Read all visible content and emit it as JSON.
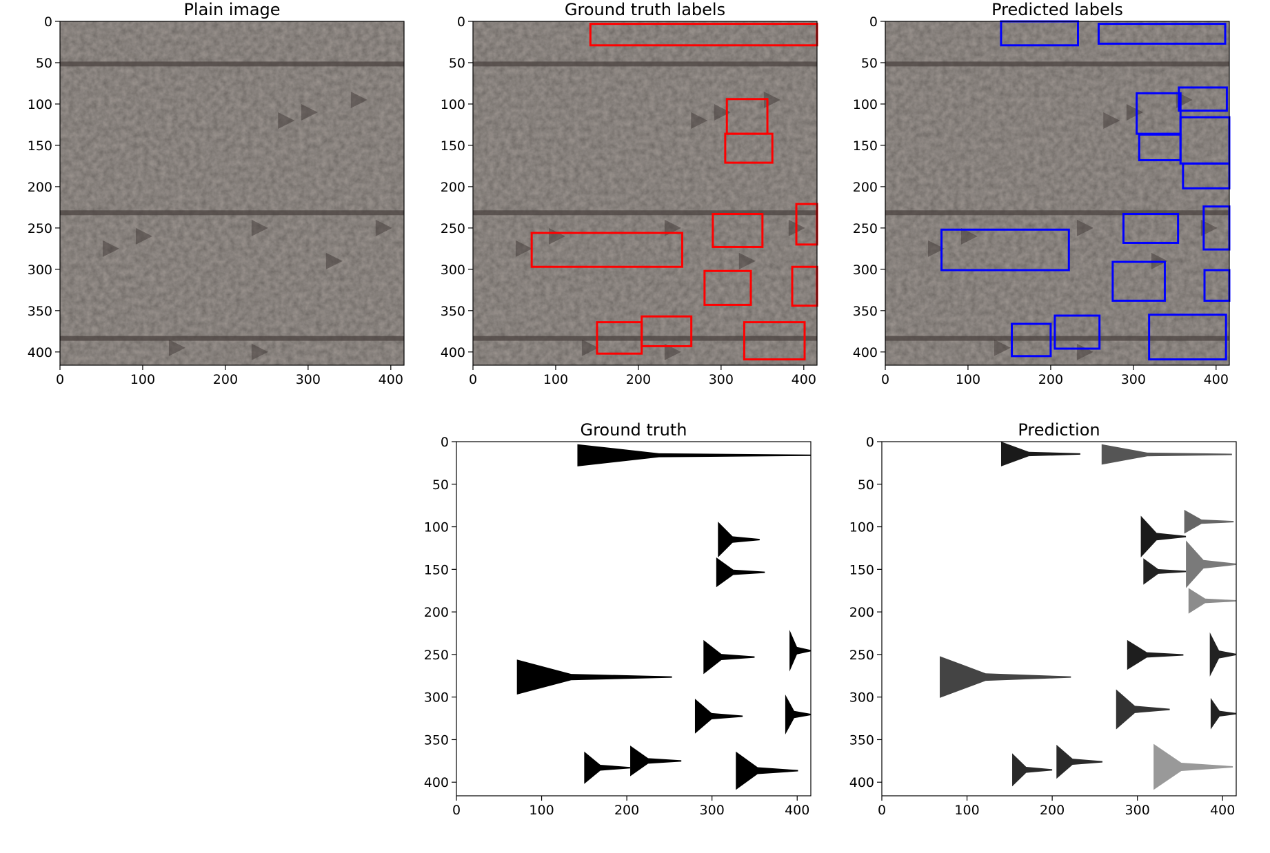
{
  "chart_data": [
    {
      "type": "image",
      "title": "Plain image",
      "xlim": [
        0,
        416
      ],
      "ylim": [
        416,
        0
      ],
      "xticks": [
        0,
        100,
        200,
        300,
        400
      ],
      "yticks": [
        0,
        50,
        100,
        150,
        200,
        250,
        300,
        350,
        400
      ],
      "texture": "stone tablet with cuneiform wedges",
      "boxes": []
    },
    {
      "type": "image",
      "title": "Ground truth labels",
      "xlim": [
        0,
        416
      ],
      "ylim": [
        416,
        0
      ],
      "xticks": [
        0,
        100,
        200,
        300,
        400
      ],
      "yticks": [
        0,
        50,
        100,
        150,
        200,
        250,
        300,
        350,
        400
      ],
      "box_color": "#ff0000",
      "boxes": [
        {
          "x0": 142,
          "y0": 3,
          "x1": 416,
          "y1": 29
        },
        {
          "x0": 307,
          "y0": 94,
          "x1": 356,
          "y1": 136
        },
        {
          "x0": 305,
          "y0": 136,
          "x1": 362,
          "y1": 171
        },
        {
          "x0": 290,
          "y0": 233,
          "x1": 350,
          "y1": 273
        },
        {
          "x0": 391,
          "y0": 221,
          "x1": 416,
          "y1": 270
        },
        {
          "x0": 71,
          "y0": 256,
          "x1": 253,
          "y1": 297
        },
        {
          "x0": 280,
          "y0": 302,
          "x1": 336,
          "y1": 343
        },
        {
          "x0": 386,
          "y0": 297,
          "x1": 416,
          "y1": 344
        },
        {
          "x0": 150,
          "y0": 364,
          "x1": 204,
          "y1": 402
        },
        {
          "x0": 204,
          "y0": 357,
          "x1": 264,
          "y1": 393
        },
        {
          "x0": 328,
          "y0": 364,
          "x1": 401,
          "y1": 409
        }
      ]
    },
    {
      "type": "image",
      "title": "Predicted labels",
      "xlim": [
        0,
        416
      ],
      "ylim": [
        416,
        0
      ],
      "xticks": [
        0,
        100,
        200,
        300,
        400
      ],
      "yticks": [
        0,
        50,
        100,
        150,
        200,
        250,
        300,
        350,
        400
      ],
      "box_color": "#0000ff",
      "boxes": [
        {
          "x0": 140,
          "y0": 0,
          "x1": 233,
          "y1": 29
        },
        {
          "x0": 258,
          "y0": 3,
          "x1": 411,
          "y1": 27
        },
        {
          "x0": 355,
          "y0": 80,
          "x1": 413,
          "y1": 108
        },
        {
          "x0": 304,
          "y0": 87,
          "x1": 357,
          "y1": 136
        },
        {
          "x0": 357,
          "y0": 116,
          "x1": 416,
          "y1": 172
        },
        {
          "x0": 307,
          "y0": 137,
          "x1": 357,
          "y1": 168
        },
        {
          "x0": 360,
          "y0": 172,
          "x1": 416,
          "y1": 202
        },
        {
          "x0": 385,
          "y0": 224,
          "x1": 416,
          "y1": 276
        },
        {
          "x0": 288,
          "y0": 233,
          "x1": 354,
          "y1": 268
        },
        {
          "x0": 68,
          "y0": 252,
          "x1": 222,
          "y1": 301
        },
        {
          "x0": 275,
          "y0": 291,
          "x1": 338,
          "y1": 338
        },
        {
          "x0": 386,
          "y0": 301,
          "x1": 416,
          "y1": 338
        },
        {
          "x0": 153,
          "y0": 366,
          "x1": 200,
          "y1": 405
        },
        {
          "x0": 205,
          "y0": 356,
          "x1": 259,
          "y1": 396
        },
        {
          "x0": 319,
          "y0": 355,
          "x1": 412,
          "y1": 409
        }
      ]
    },
    {
      "type": "wedge-map",
      "title": "Ground truth",
      "xlim": [
        0,
        416
      ],
      "ylim": [
        416,
        0
      ],
      "xticks": [
        0,
        100,
        200,
        300,
        400
      ],
      "yticks": [
        0,
        50,
        100,
        150,
        200,
        250,
        300,
        350,
        400
      ],
      "wedges": [
        {
          "x0": 142,
          "y0": 3,
          "x1": 416,
          "y1": 29,
          "shade": "#000000"
        },
        {
          "x0": 307,
          "y0": 94,
          "x1": 356,
          "y1": 136,
          "shade": "#000000"
        },
        {
          "x0": 305,
          "y0": 136,
          "x1": 362,
          "y1": 171,
          "shade": "#000000"
        },
        {
          "x0": 290,
          "y0": 233,
          "x1": 350,
          "y1": 273,
          "shade": "#000000"
        },
        {
          "x0": 391,
          "y0": 221,
          "x1": 416,
          "y1": 270,
          "shade": "#000000"
        },
        {
          "x0": 71,
          "y0": 256,
          "x1": 253,
          "y1": 297,
          "shade": "#000000"
        },
        {
          "x0": 280,
          "y0": 302,
          "x1": 336,
          "y1": 343,
          "shade": "#000000"
        },
        {
          "x0": 386,
          "y0": 297,
          "x1": 416,
          "y1": 344,
          "shade": "#000000"
        },
        {
          "x0": 150,
          "y0": 364,
          "x1": 204,
          "y1": 402,
          "shade": "#000000"
        },
        {
          "x0": 204,
          "y0": 357,
          "x1": 264,
          "y1": 393,
          "shade": "#000000"
        },
        {
          "x0": 328,
          "y0": 364,
          "x1": 401,
          "y1": 409,
          "shade": "#000000"
        }
      ]
    },
    {
      "type": "wedge-map",
      "title": "Prediction",
      "xlim": [
        0,
        416
      ],
      "ylim": [
        416,
        0
      ],
      "xticks": [
        0,
        100,
        200,
        300,
        400
      ],
      "yticks": [
        0,
        50,
        100,
        150,
        200,
        250,
        300,
        350,
        400
      ],
      "wedges": [
        {
          "x0": 140,
          "y0": 0,
          "x1": 233,
          "y1": 29,
          "shade": "#1a1a1a"
        },
        {
          "x0": 258,
          "y0": 3,
          "x1": 411,
          "y1": 27,
          "shade": "#555555"
        },
        {
          "x0": 355,
          "y0": 80,
          "x1": 413,
          "y1": 108,
          "shade": "#666666"
        },
        {
          "x0": 304,
          "y0": 87,
          "x1": 357,
          "y1": 136,
          "shade": "#1a1a1a"
        },
        {
          "x0": 357,
          "y0": 116,
          "x1": 416,
          "y1": 172,
          "shade": "#7a7a7a"
        },
        {
          "x0": 307,
          "y0": 137,
          "x1": 357,
          "y1": 168,
          "shade": "#222222"
        },
        {
          "x0": 360,
          "y0": 172,
          "x1": 416,
          "y1": 202,
          "shade": "#8c8c8c"
        },
        {
          "x0": 385,
          "y0": 224,
          "x1": 416,
          "y1": 276,
          "shade": "#222222"
        },
        {
          "x0": 288,
          "y0": 233,
          "x1": 354,
          "y1": 268,
          "shade": "#1e1e1e"
        },
        {
          "x0": 68,
          "y0": 252,
          "x1": 222,
          "y1": 301,
          "shade": "#444444"
        },
        {
          "x0": 275,
          "y0": 291,
          "x1": 338,
          "y1": 338,
          "shade": "#333333"
        },
        {
          "x0": 386,
          "y0": 301,
          "x1": 416,
          "y1": 338,
          "shade": "#222222"
        },
        {
          "x0": 153,
          "y0": 366,
          "x1": 200,
          "y1": 405,
          "shade": "#2a2a2a"
        },
        {
          "x0": 205,
          "y0": 356,
          "x1": 259,
          "y1": 396,
          "shade": "#2a2a2a"
        },
        {
          "x0": 319,
          "y0": 355,
          "x1": 412,
          "y1": 409,
          "shade": "#999999"
        }
      ]
    }
  ]
}
